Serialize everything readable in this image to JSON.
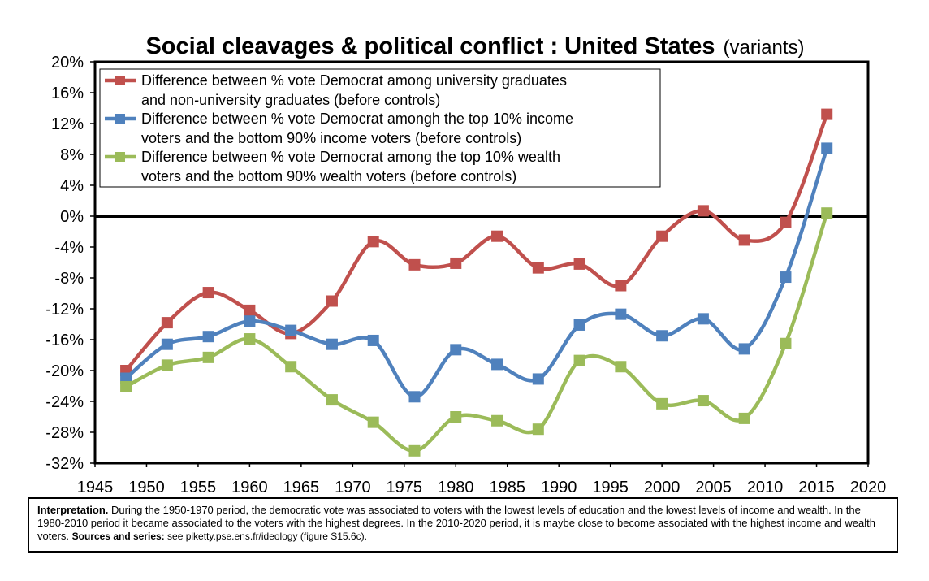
{
  "chart_data": {
    "type": "line",
    "title": "Social cleavages & political conflict : United States",
    "subtitle": "(variants)",
    "x": [
      1948,
      1952,
      1956,
      1960,
      1964,
      1968,
      1972,
      1976,
      1980,
      1984,
      1988,
      1992,
      1996,
      2000,
      2004,
      2008,
      2012,
      2016
    ],
    "xlim": [
      1945,
      2020
    ],
    "xticks": [
      "1945",
      "1950",
      "1955",
      "1960",
      "1965",
      "1970",
      "1975",
      "1980",
      "1985",
      "1990",
      "1995",
      "2000",
      "2005",
      "2010",
      "2015",
      "2020"
    ],
    "ylim": [
      -32,
      20
    ],
    "yticks": [
      "20%",
      "16%",
      "12%",
      "8%",
      "4%",
      "0%",
      "-4%",
      "-8%",
      "-12%",
      "-16%",
      "-20%",
      "-24%",
      "-28%",
      "-32%"
    ],
    "grid": false,
    "legend_position": "top-left",
    "series": [
      {
        "name_lines": [
          "Difference between % vote Democrat among university graduates",
          "and non-university graduates (before controls)"
        ],
        "color": "#C0504D",
        "values": [
          -20.0,
          -13.8,
          -9.9,
          -12.2,
          -15.2,
          -11.0,
          -3.3,
          -6.3,
          -6.1,
          -2.6,
          -6.7,
          -6.2,
          -9.0,
          -2.6,
          0.7,
          -3.1,
          -0.8,
          13.2
        ]
      },
      {
        "name_lines": [
          "Difference between % vote Democrat amongh the top 10% income",
          "voters and the bottom 90% income voters (before controls)"
        ],
        "color": "#4F81BD",
        "values": [
          -21.0,
          -16.6,
          -15.6,
          -13.6,
          -14.8,
          -16.6,
          -16.1,
          -23.4,
          -17.3,
          -19.2,
          -21.1,
          -14.1,
          -12.7,
          -15.5,
          -13.3,
          -17.2,
          -7.9,
          8.8
        ]
      },
      {
        "name_lines": [
          "Difference between % vote Democrat among the top 10% wealth",
          "voters and the bottom 90% wealth voters (before controls)"
        ],
        "color": "#9BBB59",
        "values": [
          -22.1,
          -19.3,
          -18.3,
          -15.9,
          -19.5,
          -23.8,
          -26.7,
          -30.4,
          -26.0,
          -26.5,
          -27.6,
          -18.7,
          -19.5,
          -24.3,
          -23.9,
          -26.2,
          -16.5,
          0.4
        ]
      }
    ]
  },
  "note": {
    "bold_label": "Interpretation.",
    "text": " During the 1950-1970 period, the democratic vote was associated to voters with the lowest levels of education and the lowest levels of income and wealth. In the 1980-2010 period it became associated to the voters with the highest degrees. In the 2010-2020 period, it is maybe close to become associated with the highest income and wealth voters. ",
    "sources_label": "Sources and series:",
    "sources_text": " see piketty.pse.ens.fr/ideology (figure S15.6c)."
  }
}
